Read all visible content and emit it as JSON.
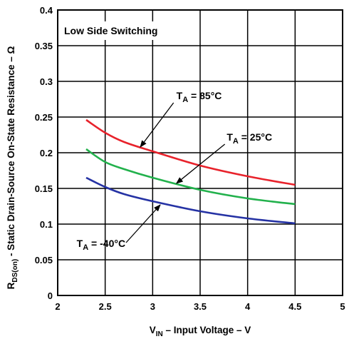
{
  "chart_data": {
    "type": "line",
    "box_label": "Low Side Switching",
    "xlabel": {
      "main": "V",
      "sub": "IN",
      "rest": " – Input Voltage – V"
    },
    "ylabel": {
      "main": "R",
      "sub": "DS(on)",
      "rest": " - Static Drain-Source On-State Resistance – Ω"
    },
    "xlim": [
      2,
      5
    ],
    "ylim": [
      0,
      0.4
    ],
    "x_ticks": [
      2,
      2.5,
      3,
      3.5,
      4,
      4.5,
      5
    ],
    "x_tick_labels": [
      "2",
      "2.5",
      "3",
      "3.5",
      "4",
      "4.5",
      "5"
    ],
    "y_ticks": [
      0,
      0.05,
      0.1,
      0.15,
      0.2,
      0.25,
      0.3,
      0.35,
      0.4
    ],
    "y_tick_labels": [
      "0",
      "0.05",
      "0.1",
      "0.15",
      "0.2",
      "0.25",
      "0.3",
      "0.35",
      "0.4"
    ],
    "grid": true,
    "series": [
      {
        "name": "T_A = 85°C",
        "color": "#e8222b",
        "x": [
          2.3,
          2.5,
          2.7,
          3.0,
          3.5,
          4.0,
          4.5
        ],
        "y": [
          0.246,
          0.228,
          0.215,
          0.202,
          0.182,
          0.167,
          0.155
        ]
      },
      {
        "name": "T_A = 25°C",
        "color": "#22b14c",
        "x": [
          2.3,
          2.5,
          2.7,
          3.0,
          3.5,
          4.0,
          4.5
        ],
        "y": [
          0.205,
          0.187,
          0.177,
          0.165,
          0.148,
          0.136,
          0.128
        ]
      },
      {
        "name": "T_A = -40°C",
        "color": "#2532a4",
        "x": [
          2.3,
          2.5,
          2.7,
          3.0,
          3.5,
          4.0,
          4.5
        ],
        "y": [
          0.165,
          0.152,
          0.142,
          0.132,
          0.118,
          0.108,
          0.101
        ]
      }
    ],
    "annotations": [
      {
        "main": "T",
        "sub": "A",
        "rest": " = 85°C",
        "text_x": 3.25,
        "text_y": 0.275,
        "arrow_from": [
          3.22,
          0.27
        ],
        "arrow_to": [
          2.87,
          0.208
        ]
      },
      {
        "main": "T",
        "sub": "A",
        "rest": " = 25°C",
        "text_x": 3.78,
        "text_y": 0.217,
        "arrow_from": [
          3.76,
          0.212
        ],
        "arrow_to": [
          3.25,
          0.157
        ]
      },
      {
        "main": "T",
        "sub": "A",
        "rest": " = -40°C",
        "text_x": 2.2,
        "text_y": 0.068,
        "arrow_from": [
          2.72,
          0.074
        ],
        "arrow_to": [
          3.08,
          0.127
        ]
      }
    ]
  }
}
